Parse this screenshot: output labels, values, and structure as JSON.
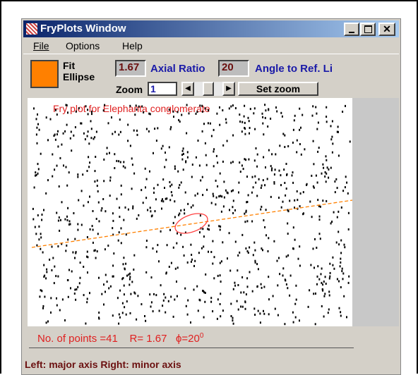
{
  "window": {
    "title": "FryPlots Window",
    "menu": [
      "File",
      "Options",
      "Help"
    ]
  },
  "toolbar": {
    "fit_button": [
      "Fit",
      "Ellipse"
    ],
    "axial_ratio_value": "1.67",
    "axial_ratio_label": "Axial Ratio",
    "angle_value": "20",
    "angle_label": "Angle to Ref. Li",
    "zoom_label": "Zoom",
    "zoom_value": "1",
    "set_zoom": "Set zoom"
  },
  "plot": {
    "title": "Fry  plot for  Elephanta conglomerate"
  },
  "info": {
    "points": "No. of points =41",
    "ratio": "R= 1.67",
    "angle": "ϕ=20",
    "angle_sup": "0"
  },
  "status": "Left: major axis  Right: minor axis"
}
